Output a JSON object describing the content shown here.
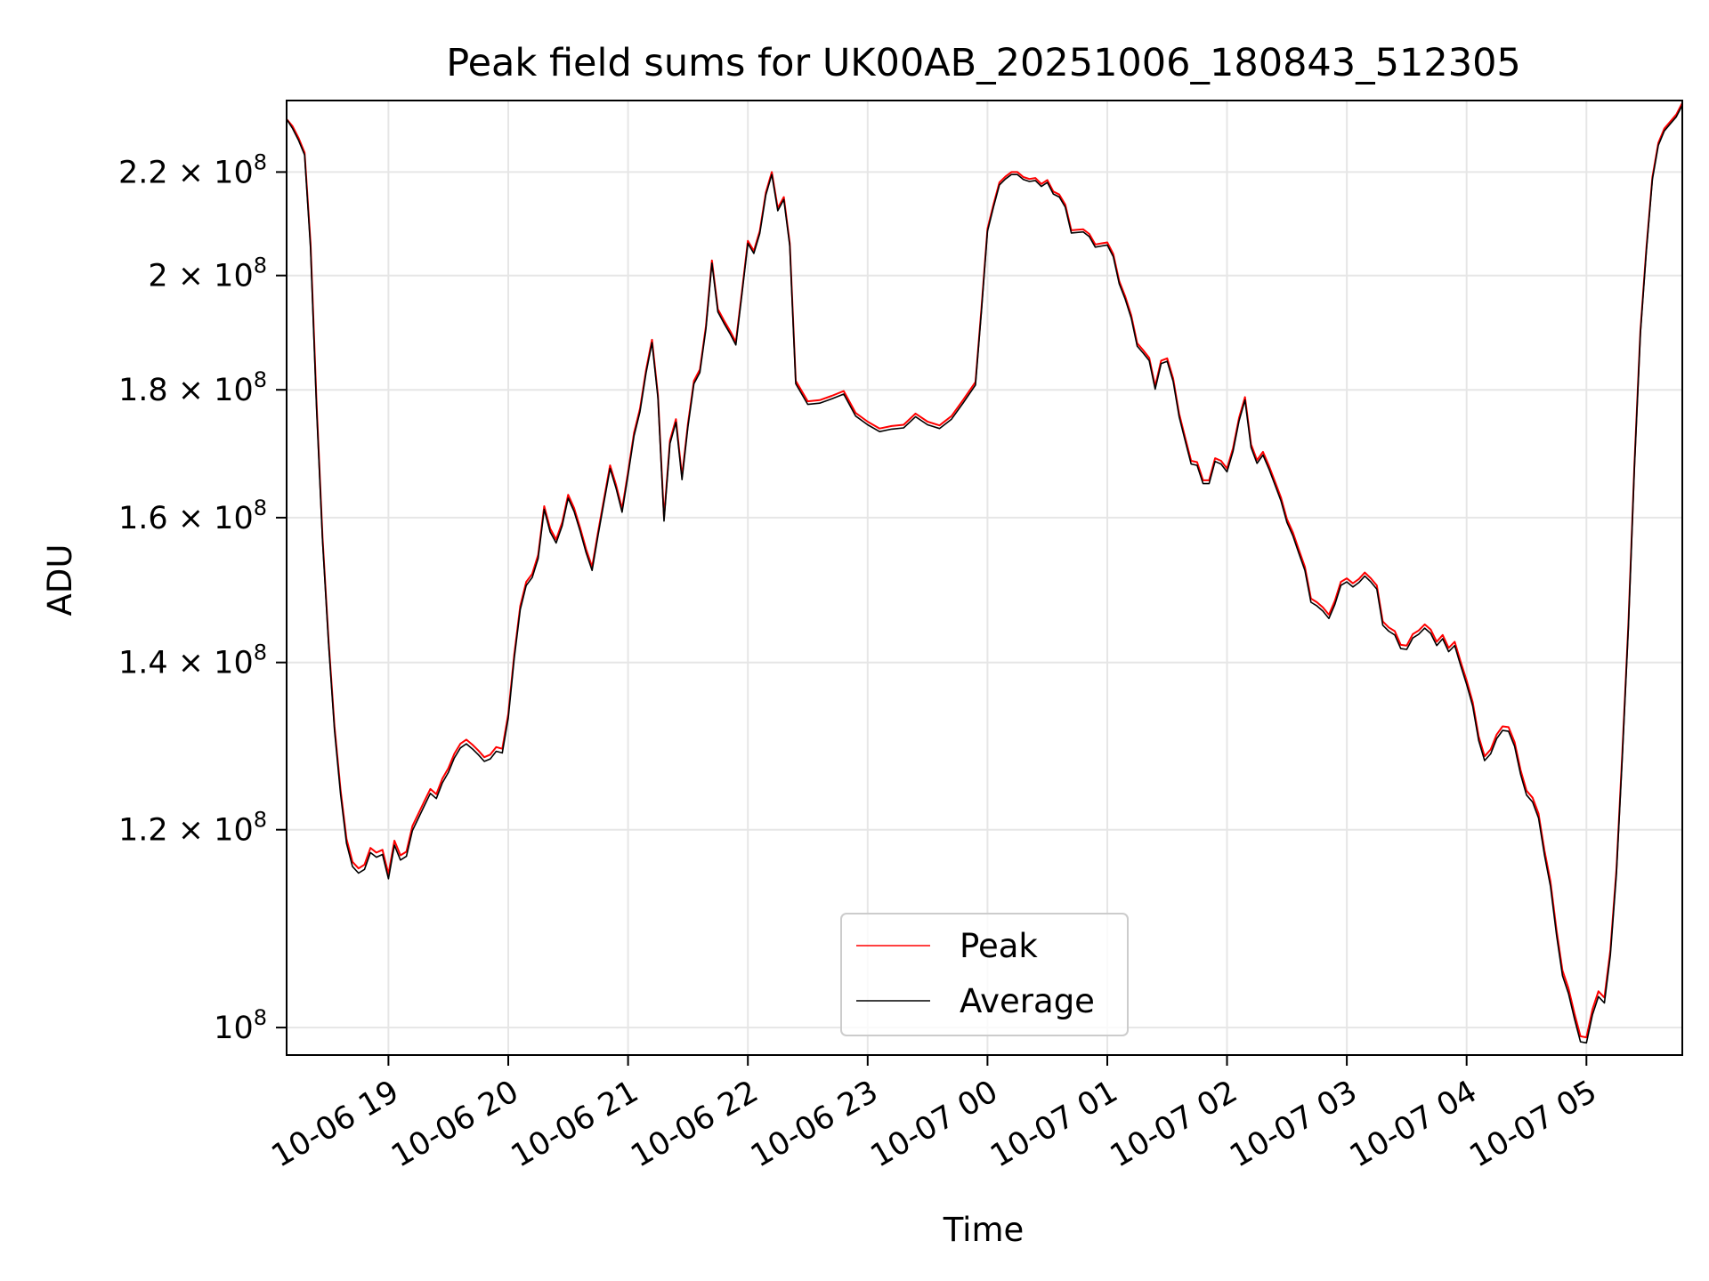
{
  "chart_data": {
    "type": "line",
    "title": "Peak field sums for UK00AB_20251006_180843_512305",
    "xlabel": "Time",
    "ylabel": "ADU",
    "yscale": "log",
    "ylim": [
      97500000,
      235000000
    ],
    "xlim_hours": [
      18.15,
      29.8
    ],
    "grid": true,
    "legend_position": "lower center",
    "x_ticks": [
      {
        "hour": 19,
        "label": "10-06 19"
      },
      {
        "hour": 20,
        "label": "10-06 20"
      },
      {
        "hour": 21,
        "label": "10-06 21"
      },
      {
        "hour": 22,
        "label": "10-06 22"
      },
      {
        "hour": 23,
        "label": "10-06 23"
      },
      {
        "hour": 24,
        "label": "10-07 00"
      },
      {
        "hour": 25,
        "label": "10-07 01"
      },
      {
        "hour": 26,
        "label": "10-07 02"
      },
      {
        "hour": 27,
        "label": "10-07 03"
      },
      {
        "hour": 28,
        "label": "10-07 04"
      },
      {
        "hour": 29,
        "label": "10-07 05"
      }
    ],
    "y_ticks": [
      {
        "value": 100000000,
        "mantissa": "",
        "exp": "8"
      },
      {
        "value": 120000000,
        "mantissa": "1.2",
        "exp": "8"
      },
      {
        "value": 140000000,
        "mantissa": "1.4",
        "exp": "8"
      },
      {
        "value": 160000000,
        "mantissa": "1.6",
        "exp": "8"
      },
      {
        "value": 180000000,
        "mantissa": "1.8",
        "exp": "8"
      },
      {
        "value": 200000000,
        "mantissa": "2",
        "exp": "8"
      },
      {
        "value": 220000000,
        "mantissa": "2.2",
        "exp": "8"
      }
    ],
    "series": [
      {
        "name": "Peak",
        "color": "#ff0000",
        "points_hours": [
          18.15,
          18.2,
          18.25,
          18.3,
          18.35,
          18.4,
          18.45,
          18.5,
          18.55,
          18.6,
          18.65,
          18.7,
          18.75,
          18.8,
          18.85,
          18.9,
          18.95,
          19.0,
          19.05,
          19.1,
          19.15,
          19.2,
          19.25,
          19.3,
          19.35,
          19.4,
          19.45,
          19.5,
          19.55,
          19.6,
          19.65,
          19.7,
          19.75,
          19.8,
          19.85,
          19.9,
          19.95,
          20.0,
          20.05,
          20.1,
          20.15,
          20.2,
          20.25,
          20.3,
          20.35,
          20.4,
          20.45,
          20.5,
          20.55,
          20.6,
          20.65,
          20.7,
          20.75,
          20.8,
          20.85,
          20.9,
          20.95,
          21.0,
          21.05,
          21.1,
          21.15,
          21.2,
          21.25,
          21.3,
          21.35,
          21.4,
          21.45,
          21.5,
          21.55,
          21.6,
          21.65,
          21.7,
          21.75,
          21.8,
          21.85,
          21.9,
          21.95,
          22.0,
          22.05,
          22.1,
          22.15,
          22.2,
          22.25,
          22.3,
          22.35,
          22.4,
          22.5,
          22.6,
          22.7,
          22.8,
          22.9,
          23.0,
          23.1,
          23.2,
          23.3,
          23.4,
          23.5,
          23.6,
          23.7,
          23.8,
          23.9,
          23.95,
          24.0,
          24.05,
          24.1,
          24.15,
          24.2,
          24.25,
          24.3,
          24.35,
          24.4,
          24.45,
          24.5,
          24.55,
          24.6,
          24.65,
          24.7,
          24.75,
          24.8,
          24.85,
          24.9,
          24.95,
          25.0,
          25.05,
          25.1,
          25.15,
          25.2,
          25.25,
          25.3,
          25.35,
          25.4,
          25.45,
          25.5,
          25.55,
          25.6,
          25.65,
          25.7,
          25.75,
          25.8,
          25.85,
          25.9,
          25.95,
          26.0,
          26.05,
          26.1,
          26.15,
          26.2,
          26.25,
          26.3,
          26.35,
          26.4,
          26.45,
          26.5,
          26.55,
          26.6,
          26.65,
          26.7,
          26.75,
          26.8,
          26.85,
          26.9,
          26.95,
          27.0,
          27.05,
          27.1,
          27.15,
          27.2,
          27.25,
          27.3,
          27.35,
          27.4,
          27.45,
          27.5,
          27.55,
          27.6,
          27.65,
          27.7,
          27.75,
          27.8,
          27.85,
          27.9,
          27.95,
          28.0,
          28.05,
          28.1,
          28.15,
          28.2,
          28.25,
          28.3,
          28.35,
          28.4,
          28.45,
          28.5,
          28.55,
          28.6,
          28.65,
          28.7,
          28.75,
          28.8,
          28.85,
          28.9,
          28.95,
          29.0,
          29.05,
          29.1,
          29.15,
          29.2,
          29.25,
          29.3,
          29.35,
          29.4,
          29.45,
          29.5,
          29.55,
          29.6,
          29.65,
          29.7,
          29.75,
          29.8
        ],
        "points_values": [
          231000000,
          229500000,
          227000000,
          224000000,
          206000000,
          178000000,
          157000000,
          143000000,
          132000000,
          124500000,
          119000000,
          116500000,
          115800000,
          116200000,
          118000000,
          117500000,
          117800000,
          115200000,
          118800000,
          117200000,
          117600000,
          120400000,
          121800000,
          123200000,
          124600000,
          124000000,
          125800000,
          127000000,
          128700000,
          129900000,
          130400000,
          129800000,
          129100000,
          128300000,
          128600000,
          129500000,
          129300000,
          133500000,
          141000000,
          147500000,
          150800000,
          151900000,
          154600000,
          161700000,
          158400000,
          156800000,
          159300000,
          163400000,
          161400000,
          158500000,
          155400000,
          152900000,
          157900000,
          162900000,
          167900000,
          164900000,
          161300000,
          166900000,
          173000000,
          176900000,
          183300000,
          188500000,
          179100000,
          160000000,
          171800000,
          175200000,
          166200000,
          174500000,
          181500000,
          183400000,
          190900000,
          202800000,
          193900000,
          191900000,
          190100000,
          188100000,
          197000000,
          206500000,
          204600000,
          208400000,
          215900000,
          220000000,
          212800000,
          215000000,
          206000000,
          181500000,
          178100000,
          178300000,
          179000000,
          179800000,
          176200000,
          174800000,
          173700000,
          174100000,
          174300000,
          176100000,
          174800000,
          174200000,
          175700000,
          178400000,
          181300000,
          194000000,
          208800000,
          213500000,
          217900000,
          219100000,
          220000000,
          220000000,
          219000000,
          218600000,
          218800000,
          217600000,
          218400000,
          216100000,
          215500000,
          213500000,
          208500000,
          208600000,
          208700000,
          207800000,
          205800000,
          206000000,
          206200000,
          204000000,
          199000000,
          196200000,
          192800000,
          187900000,
          186700000,
          185400000,
          180600000,
          184900000,
          185300000,
          181900000,
          176100000,
          172300000,
          168600000,
          168400000,
          165600000,
          165600000,
          169000000,
          168600000,
          167400000,
          170600000,
          175400000,
          178800000,
          171200000,
          168700000,
          170000000,
          167800000,
          165400000,
          163000000,
          159800000,
          157800000,
          155300000,
          152900000,
          148500000,
          148000000,
          147300000,
          146300000,
          148200000,
          150800000,
          151300000,
          150600000,
          151200000,
          152100000,
          151300000,
          150300000,
          145400000,
          144600000,
          144100000,
          142300000,
          142200000,
          143700000,
          144200000,
          145000000,
          144300000,
          142700000,
          143600000,
          141900000,
          142700000,
          140100000,
          137700000,
          135000000,
          130800000,
          128400000,
          129200000,
          131000000,
          132000000,
          131900000,
          130100000,
          126800000,
          124400000,
          123600000,
          121800000,
          117700000,
          114400000,
          109400000,
          105400000,
          103700000,
          101300000,
          99200000,
          99100000,
          101700000,
          103400000,
          102800000,
          107400000,
          115700000,
          129000000,
          145000000,
          168000000,
          190000000,
          205000000,
          219000000,
          226000000,
          229000000,
          230500000,
          232000000,
          234500000
        ]
      },
      {
        "name": "Average",
        "color": "#000000",
        "points_hours": [
          18.15,
          18.2,
          18.25,
          18.3,
          18.35,
          18.4,
          18.45,
          18.5,
          18.55,
          18.6,
          18.65,
          18.7,
          18.75,
          18.8,
          18.85,
          18.9,
          18.95,
          19.0,
          19.05,
          19.1,
          19.15,
          19.2,
          19.25,
          19.3,
          19.35,
          19.4,
          19.45,
          19.5,
          19.55,
          19.6,
          19.65,
          19.7,
          19.75,
          19.8,
          19.85,
          19.9,
          19.95,
          20.0,
          20.05,
          20.1,
          20.15,
          20.2,
          20.25,
          20.3,
          20.35,
          20.4,
          20.45,
          20.5,
          20.55,
          20.6,
          20.65,
          20.7,
          20.75,
          20.8,
          20.85,
          20.9,
          20.95,
          21.0,
          21.05,
          21.1,
          21.15,
          21.2,
          21.25,
          21.3,
          21.35,
          21.4,
          21.45,
          21.5,
          21.55,
          21.6,
          21.65,
          21.7,
          21.75,
          21.8,
          21.85,
          21.9,
          21.95,
          22.0,
          22.05,
          22.1,
          22.15,
          22.2,
          22.25,
          22.3,
          22.35,
          22.4,
          22.5,
          22.6,
          22.7,
          22.8,
          22.9,
          23.0,
          23.1,
          23.2,
          23.3,
          23.4,
          23.5,
          23.6,
          23.7,
          23.8,
          23.9,
          23.95,
          24.0,
          24.05,
          24.1,
          24.15,
          24.2,
          24.25,
          24.3,
          24.35,
          24.4,
          24.45,
          24.5,
          24.55,
          24.6,
          24.65,
          24.7,
          24.75,
          24.8,
          24.85,
          24.9,
          24.95,
          25.0,
          25.05,
          25.1,
          25.15,
          25.2,
          25.25,
          25.3,
          25.35,
          25.4,
          25.45,
          25.5,
          25.55,
          25.6,
          25.65,
          25.7,
          25.75,
          25.8,
          25.85,
          25.9,
          25.95,
          26.0,
          26.05,
          26.1,
          26.15,
          26.2,
          26.25,
          26.3,
          26.35,
          26.4,
          26.45,
          26.5,
          26.55,
          26.6,
          26.65,
          26.7,
          26.75,
          26.8,
          26.85,
          26.9,
          26.95,
          27.0,
          27.05,
          27.1,
          27.15,
          27.2,
          27.25,
          27.3,
          27.35,
          27.4,
          27.45,
          27.5,
          27.55,
          27.6,
          27.65,
          27.7,
          27.75,
          27.8,
          27.85,
          27.9,
          27.95,
          28.0,
          28.05,
          28.1,
          28.15,
          28.2,
          28.25,
          28.3,
          28.35,
          28.4,
          28.45,
          28.5,
          28.55,
          28.6,
          28.65,
          28.7,
          28.75,
          28.8,
          28.85,
          28.9,
          28.95,
          29.0,
          29.05,
          29.1,
          29.15,
          29.2,
          29.25,
          29.3,
          29.35,
          29.4,
          29.45,
          29.5,
          29.55,
          29.6,
          29.65,
          29.7,
          29.75,
          29.8
        ],
        "points_values": [
          231000000,
          229000000,
          226500000,
          223500000,
          205000000,
          177000000,
          156500000,
          142500000,
          131500000,
          124000000,
          118500000,
          116000000,
          115300000,
          115700000,
          117500000,
          117000000,
          117300000,
          114700000,
          118300000,
          116700000,
          117100000,
          119900000,
          121300000,
          122700000,
          124100000,
          123500000,
          125300000,
          126500000,
          128200000,
          129400000,
          129900000,
          129300000,
          128600000,
          127800000,
          128100000,
          129000000,
          128800000,
          133000000,
          140500000,
          147000000,
          150300000,
          151400000,
          154100000,
          161200000,
          157900000,
          156300000,
          158800000,
          162900000,
          160900000,
          158000000,
          154900000,
          152400000,
          157400000,
          162400000,
          167400000,
          164400000,
          160800000,
          166400000,
          172500000,
          176400000,
          182800000,
          188000000,
          178600000,
          159500000,
          171300000,
          174700000,
          165700000,
          174000000,
          181000000,
          182900000,
          190400000,
          202300000,
          193400000,
          191400000,
          189600000,
          187600000,
          196500000,
          206000000,
          204100000,
          207900000,
          215400000,
          219500000,
          212300000,
          214500000,
          205500000,
          181000000,
          177600000,
          177800000,
          178500000,
          179300000,
          175700000,
          174300000,
          173200000,
          173600000,
          173800000,
          175600000,
          174300000,
          173700000,
          175200000,
          177900000,
          180800000,
          193500000,
          208300000,
          213000000,
          217400000,
          218600000,
          219500000,
          219500000,
          218500000,
          218100000,
          218300000,
          217100000,
          217900000,
          215600000,
          215000000,
          213000000,
          208000000,
          208100000,
          208200000,
          207300000,
          205300000,
          205500000,
          205700000,
          203500000,
          198500000,
          195700000,
          192300000,
          187400000,
          186200000,
          184900000,
          180100000,
          184400000,
          184800000,
          181400000,
          175600000,
          171800000,
          168100000,
          167900000,
          165100000,
          165100000,
          168500000,
          168100000,
          166900000,
          170100000,
          174900000,
          178300000,
          170700000,
          168200000,
          169500000,
          167300000,
          164900000,
          162500000,
          159300000,
          157300000,
          154800000,
          152400000,
          148000000,
          147500000,
          146800000,
          145800000,
          147700000,
          150300000,
          150800000,
          150100000,
          150700000,
          151600000,
          150800000,
          149800000,
          144900000,
          144100000,
          143600000,
          141800000,
          141700000,
          143200000,
          143700000,
          144500000,
          143800000,
          142200000,
          143100000,
          141400000,
          142200000,
          139600000,
          137200000,
          134500000,
          130300000,
          127900000,
          128700000,
          130500000,
          131500000,
          131400000,
          129600000,
          126300000,
          123900000,
          123100000,
          121300000,
          117200000,
          113900000,
          108900000,
          104900000,
          103200000,
          100800000,
          98700000,
          98600000,
          101200000,
          102900000,
          102300000,
          106900000,
          115200000,
          128500000,
          144500000,
          167500000,
          189500000,
          204500000,
          218500000,
          225500000,
          228500000,
          230000000,
          231500000,
          234000000
        ]
      }
    ]
  }
}
